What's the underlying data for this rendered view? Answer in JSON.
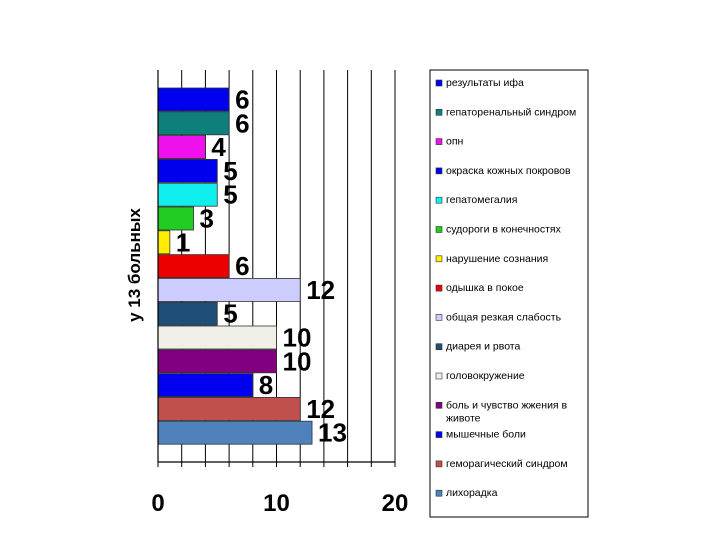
{
  "chart_data": {
    "type": "bar",
    "orientation": "horizontal",
    "ylabel": "у 13 больных",
    "xlim": [
      0,
      20
    ],
    "xticks": [
      0,
      10,
      20
    ],
    "grid": true,
    "legend_position": "right",
    "categories": [
      "результаты ифа",
      "гепаторенальный синдром",
      "опн",
      "окраска кожных покровов",
      "гепатомегалия",
      "судороги в конечностях",
      "нарушение сознания",
      "одышка в покое",
      "общая резкая слабость",
      "диарея и  рвота",
      "головокружение",
      "боль и чувство жжения в животе",
      "мышечные боли",
      "геморагический синдром",
      "лихорадка"
    ],
    "values": [
      6,
      6,
      4,
      5,
      5,
      3,
      1,
      6,
      12,
      5,
      10,
      10,
      8,
      12,
      13
    ],
    "colors": [
      "#0000ee",
      "#0e7f7a",
      "#ee11ee",
      "#0000ee",
      "#11eeee",
      "#22cc22",
      "#ffee00",
      "#ee0000",
      "#ccccff",
      "#1f4e79",
      "#f0f0e8",
      "#800080",
      "#0000ee",
      "#c0504d",
      "#4f81bd"
    ]
  }
}
